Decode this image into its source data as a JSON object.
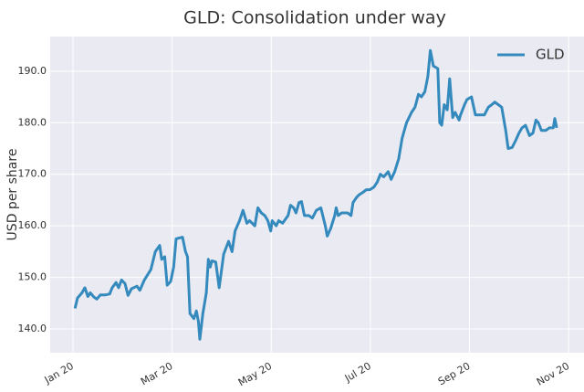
{
  "chart_data": {
    "type": "line",
    "title": "GLD: Consolidation under way",
    "y_label": "USD per share",
    "x": [
      0.04,
      0.09,
      0.18,
      0.24,
      0.3,
      0.35,
      0.42,
      0.48,
      0.55,
      0.65,
      0.74,
      0.79,
      0.87,
      0.92,
      0.98,
      1.05,
      1.11,
      1.18,
      1.29,
      1.35,
      1.44,
      1.57,
      1.66,
      1.75,
      1.79,
      1.85,
      1.9,
      1.97,
      2.03,
      2.08,
      2.21,
      2.27,
      2.31,
      2.36,
      2.44,
      2.49,
      2.53,
      2.56,
      2.62,
      2.69,
      2.73,
      2.77,
      2.8,
      2.88,
      2.95,
      3.04,
      3.14,
      3.21,
      3.27,
      3.36,
      3.43,
      3.51,
      3.56,
      3.67,
      3.73,
      3.8,
      3.87,
      3.93,
      3.99,
      4.02,
      4.1,
      4.15,
      4.23,
      4.34,
      4.39,
      4.45,
      4.5,
      4.56,
      4.61,
      4.67,
      4.76,
      4.83,
      4.91,
      5.0,
      5.09,
      5.13,
      5.2,
      5.28,
      5.31,
      5.35,
      5.42,
      5.54,
      5.61,
      5.65,
      5.72,
      5.77,
      5.85,
      5.92,
      5.99,
      6.07,
      6.14,
      6.2,
      6.27,
      6.36,
      6.42,
      6.49,
      6.57,
      6.64,
      6.73,
      6.83,
      6.9,
      6.97,
      7.03,
      7.1,
      7.16,
      7.21,
      7.27,
      7.36,
      7.4,
      7.44,
      7.49,
      7.55,
      7.6,
      7.66,
      7.71,
      7.79,
      7.82,
      7.9,
      7.95,
      8.04,
      8.12,
      8.19,
      8.3,
      8.38,
      8.45,
      8.51,
      8.58,
      8.65,
      8.73,
      8.78,
      8.86,
      8.93,
      9.0,
      9.06,
      9.13,
      9.21,
      9.28,
      9.34,
      9.39,
      9.45,
      9.54,
      9.61,
      9.69,
      9.72,
      9.76
    ],
    "series": [
      {
        "name": "GLD",
        "color": "#348abd",
        "values": [
          144.0,
          146,
          147,
          148,
          146.3,
          147,
          146.2,
          145.8,
          146.6,
          146.6,
          146.8,
          148,
          149,
          148,
          149.5,
          148.8,
          146.5,
          147.8,
          148.3,
          147.5,
          149.5,
          151.5,
          155,
          156.2,
          153.5,
          154,
          148.5,
          149.2,
          152,
          157.5,
          157.8,
          155,
          154,
          143,
          142,
          143.5,
          141.5,
          138,
          143,
          147,
          153.5,
          152,
          153.2,
          153,
          148,
          154.5,
          157,
          155,
          159,
          161,
          163,
          160.5,
          161,
          160,
          163.5,
          162.5,
          162,
          161,
          159,
          161,
          160,
          161,
          160.5,
          162,
          164,
          163.5,
          162.5,
          164.5,
          164.7,
          162,
          162,
          161.5,
          163,
          163.5,
          160,
          158,
          159.5,
          162,
          163.5,
          162,
          162.5,
          162.5,
          162,
          164.5,
          165.5,
          166,
          166.5,
          167,
          167,
          167.5,
          168.5,
          170,
          169.5,
          170.5,
          169,
          170.5,
          173,
          177,
          180,
          182,
          183,
          185.5,
          185,
          186,
          189,
          194,
          191,
          190.5,
          180,
          179.5,
          183.5,
          182.5,
          188.5,
          181,
          182,
          180.5,
          181.5,
          183.5,
          184.5,
          185,
          181.5,
          181.5,
          181.5,
          183,
          183.5,
          184,
          183.5,
          183,
          178.5,
          175,
          175.2,
          176.5,
          178,
          179,
          179.5,
          177.5,
          178,
          180.5,
          180,
          178.5,
          178.5,
          179,
          179,
          180.8,
          179
        ]
      }
    ],
    "xlim": [
      -0.46,
      10.31
    ],
    "ylim": [
      135.4,
      196.7
    ],
    "xticks": [
      {
        "value": 0,
        "label": "Jan 20"
      },
      {
        "value": 2,
        "label": "Mar 20"
      },
      {
        "value": 4,
        "label": "May 20"
      },
      {
        "value": 6,
        "label": "Jul 20"
      },
      {
        "value": 8,
        "label": "Sep 20"
      },
      {
        "value": 10,
        "label": "Nov 20"
      }
    ],
    "yticks": [
      {
        "value": 140,
        "label": "140.0"
      },
      {
        "value": 150,
        "label": "150.0"
      },
      {
        "value": 160,
        "label": "160.0"
      },
      {
        "value": 170,
        "label": "170.0"
      },
      {
        "value": 180,
        "label": "180.0"
      },
      {
        "value": 190,
        "label": "190.0"
      }
    ],
    "grid": true,
    "legend": "upper-right"
  }
}
